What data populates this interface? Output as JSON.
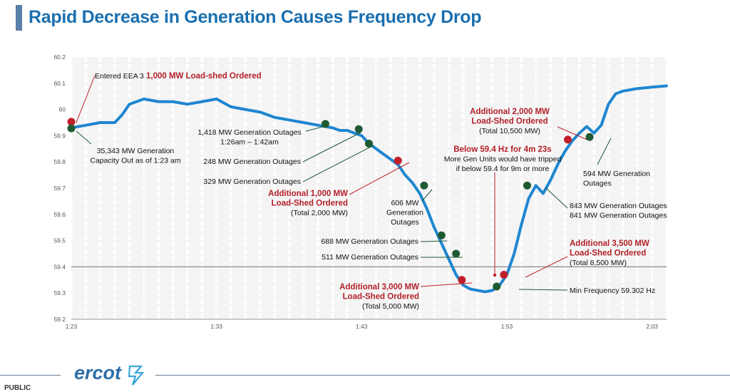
{
  "title": "Rapid Decrease in Generation Causes Frequency Drop",
  "footer": {
    "brand": "ercot",
    "classification": "PUBLIC"
  },
  "colors": {
    "line": "#1f86d0",
    "green_marker": "#1f5a33",
    "red_marker": "#c01f2a",
    "red_text": "#b22028",
    "title": "#1a6fb0",
    "threshold": "#888888"
  },
  "chart_data": {
    "type": "line",
    "title": "",
    "xlabel": "",
    "ylabel": "",
    "x_ticks": [
      "1:23",
      "1:33",
      "1:43",
      "1:53",
      "2:03"
    ],
    "y_ticks": [
      "59.2",
      "59.3",
      "59.4",
      "59.5",
      "59.6",
      "59.7",
      "59.8",
      "59.9",
      "60",
      "60.1",
      "60.2"
    ],
    "ylim": [
      59.2,
      60.2
    ],
    "xlim_minutes": [
      83,
      124
    ],
    "grid": "vertical dashed columns",
    "reference_line": 59.4,
    "series": [
      {
        "values_note": "x = minutes after midnight, y = Hz",
        "x": [
          83,
          84,
          85,
          86,
          86.5,
          87,
          88,
          89,
          90,
          91,
          92,
          93,
          94,
          95,
          96,
          97,
          98,
          99,
          100,
          101,
          101.5,
          102,
          102.5,
          103,
          103.5,
          104,
          104.5,
          105,
          105.5,
          106,
          106.5,
          107,
          107.5,
          108,
          108.5,
          109,
          109.5,
          110,
          110.5,
          111,
          111.5,
          112,
          112.5,
          113,
          113.5,
          114,
          114.5,
          115,
          115.5,
          116,
          116.5,
          117,
          117.5,
          118,
          118.5,
          119,
          119.5,
          120,
          120.5,
          121,
          121.5,
          122,
          123,
          124
        ],
        "y": [
          59.93,
          59.94,
          59.95,
          59.95,
          59.98,
          60.02,
          60.04,
          60.03,
          60.03,
          60.02,
          60.03,
          60.04,
          60.01,
          60.0,
          59.99,
          59.97,
          59.96,
          59.95,
          59.94,
          59.93,
          59.92,
          59.92,
          59.91,
          59.9,
          59.87,
          59.85,
          59.83,
          59.81,
          59.79,
          59.75,
          59.72,
          59.68,
          59.62,
          59.55,
          59.49,
          59.43,
          59.37,
          59.33,
          59.315,
          59.31,
          59.305,
          59.31,
          59.33,
          59.37,
          59.45,
          59.56,
          59.66,
          59.71,
          59.68,
          59.73,
          59.79,
          59.84,
          59.88,
          59.91,
          59.935,
          59.91,
          59.94,
          60.02,
          60.06,
          60.07,
          60.075,
          60.08,
          60.085,
          60.09
        ]
      }
    ],
    "markers": [
      {
        "x": 83,
        "y": 59.953,
        "color": "red"
      },
      {
        "x": 83,
        "y": 59.928,
        "color": "green"
      },
      {
        "x": 100.5,
        "y": 59.945,
        "color": "green"
      },
      {
        "x": 102.8,
        "y": 59.925,
        "color": "green"
      },
      {
        "x": 103.5,
        "y": 59.87,
        "color": "green"
      },
      {
        "x": 105.5,
        "y": 59.805,
        "color": "red"
      },
      {
        "x": 107.3,
        "y": 59.71,
        "color": "green"
      },
      {
        "x": 108.5,
        "y": 59.52,
        "color": "green"
      },
      {
        "x": 109.5,
        "y": 59.45,
        "color": "green"
      },
      {
        "x": 109.9,
        "y": 59.35,
        "color": "red"
      },
      {
        "x": 112.3,
        "y": 59.325,
        "color": "green"
      },
      {
        "x": 112.8,
        "y": 59.37,
        "color": "red"
      },
      {
        "x": 114.4,
        "y": 59.71,
        "color": "green"
      },
      {
        "x": 117.2,
        "y": 59.885,
        "color": "red"
      },
      {
        "x": 118.7,
        "y": 59.895,
        "color": "green"
      }
    ],
    "annotations": [
      {
        "id": "eea3",
        "lines": [
          "Entered EEA 3"
        ],
        "red": "1,000 MW Load-shed Ordered"
      },
      {
        "id": "capacity",
        "lines": [
          "35,343 MW Generation",
          "Capacity Out as of 1:23 am"
        ]
      },
      {
        "id": "outage1418",
        "lines": [
          "1,418 MW Generation Outages",
          "1:26am – 1:42am"
        ]
      },
      {
        "id": "outage248",
        "lines": [
          "248 MW Generation Outages"
        ]
      },
      {
        "id": "outage329",
        "lines": [
          "329 MW Generation Outages"
        ]
      },
      {
        "id": "add1000",
        "red_lines": [
          "Additional 1,000 MW",
          "Load-Shed Ordered"
        ],
        "lines": [
          "(Total 2,000 MW)"
        ]
      },
      {
        "id": "outage606",
        "lines": [
          "606 MW",
          "Generation",
          "Outages"
        ]
      },
      {
        "id": "outage688",
        "lines": [
          "688 MW Generation Outages"
        ]
      },
      {
        "id": "outage511",
        "lines": [
          "511 MW Generation Outages"
        ]
      },
      {
        "id": "add3000",
        "red_lines": [
          "Additional 3,000 MW",
          "Load-Shed Ordered"
        ],
        "lines": [
          "(Total 5,000 MW)"
        ]
      },
      {
        "id": "below594",
        "red_lines": [
          "Below 59.4 Hz for 4m 23s"
        ],
        "lines": [
          "More Gen Units would have tripped",
          "if below 59.4 for 9m or more"
        ]
      },
      {
        "id": "minfreq",
        "lines": [
          "Min Frequency 59.302 Hz"
        ]
      },
      {
        "id": "add3500",
        "red_lines": [
          "Additional 3,500 MW",
          "Load-Shed Ordered"
        ],
        "lines": [
          "(Total 8,500 MW)"
        ]
      },
      {
        "id": "outage843",
        "lines": [
          "843 MW Generation Outages",
          "841 MW Generation Outages"
        ]
      },
      {
        "id": "add2000",
        "red_lines": [
          "Additional 2,000 MW",
          "Load-Shed Ordered"
        ],
        "lines": [
          "(Total 10,500 MW)"
        ]
      },
      {
        "id": "outage594",
        "lines": [
          "594 MW Generation",
          "Outages"
        ]
      }
    ]
  }
}
